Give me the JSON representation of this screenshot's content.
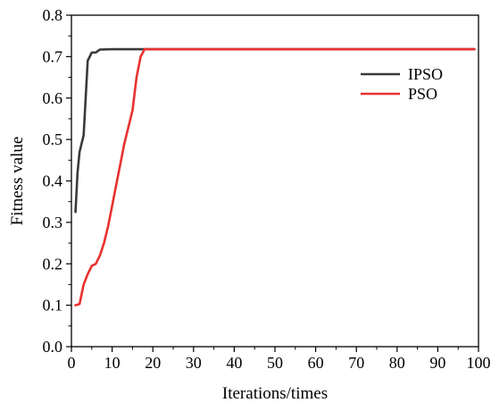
{
  "chart_data": {
    "type": "line",
    "xlabel": "Iterations/times",
    "ylabel": "Fitness value",
    "xlim": [
      0,
      100
    ],
    "ylim": [
      0,
      0.8
    ],
    "xticks": [
      0,
      10,
      20,
      30,
      40,
      50,
      60,
      70,
      80,
      90,
      100
    ],
    "yticks": [
      0.0,
      0.1,
      0.2,
      0.3,
      0.4,
      0.5,
      0.6,
      0.7,
      0.8
    ],
    "ytick_labels": [
      "0.0",
      "0.1",
      "0.2",
      "0.3",
      "0.4",
      "0.5",
      "0.6",
      "0.7",
      "0.8"
    ],
    "grid": false,
    "legend_position": "top-right",
    "series": [
      {
        "name": "IPSO",
        "color": "#3a3a3a",
        "points": [
          [
            1,
            0.325
          ],
          [
            1.5,
            0.42
          ],
          [
            2,
            0.47
          ],
          [
            3,
            0.51
          ],
          [
            3.5,
            0.6
          ],
          [
            4,
            0.69
          ],
          [
            5,
            0.71
          ],
          [
            6,
            0.71
          ],
          [
            7,
            0.717
          ],
          [
            10,
            0.718
          ],
          [
            20,
            0.718
          ],
          [
            30,
            0.718
          ],
          [
            40,
            0.718
          ],
          [
            50,
            0.718
          ],
          [
            60,
            0.718
          ],
          [
            70,
            0.718
          ],
          [
            80,
            0.718
          ],
          [
            90,
            0.718
          ],
          [
            99,
            0.718
          ]
        ]
      },
      {
        "name": "PSO",
        "color": "#e8312f",
        "points": [
          [
            1,
            0.1
          ],
          [
            2,
            0.103
          ],
          [
            3,
            0.15
          ],
          [
            4,
            0.175
          ],
          [
            5,
            0.195
          ],
          [
            6,
            0.2
          ],
          [
            7,
            0.22
          ],
          [
            8,
            0.25
          ],
          [
            9,
            0.29
          ],
          [
            10,
            0.34
          ],
          [
            11,
            0.39
          ],
          [
            12,
            0.44
          ],
          [
            13,
            0.49
          ],
          [
            14,
            0.53
          ],
          [
            15,
            0.57
          ],
          [
            16,
            0.65
          ],
          [
            17,
            0.7
          ],
          [
            18,
            0.718
          ],
          [
            20,
            0.718
          ],
          [
            30,
            0.718
          ],
          [
            40,
            0.718
          ],
          [
            50,
            0.718
          ],
          [
            60,
            0.718
          ],
          [
            70,
            0.718
          ],
          [
            80,
            0.718
          ],
          [
            90,
            0.718
          ],
          [
            99,
            0.718
          ]
        ]
      }
    ]
  }
}
